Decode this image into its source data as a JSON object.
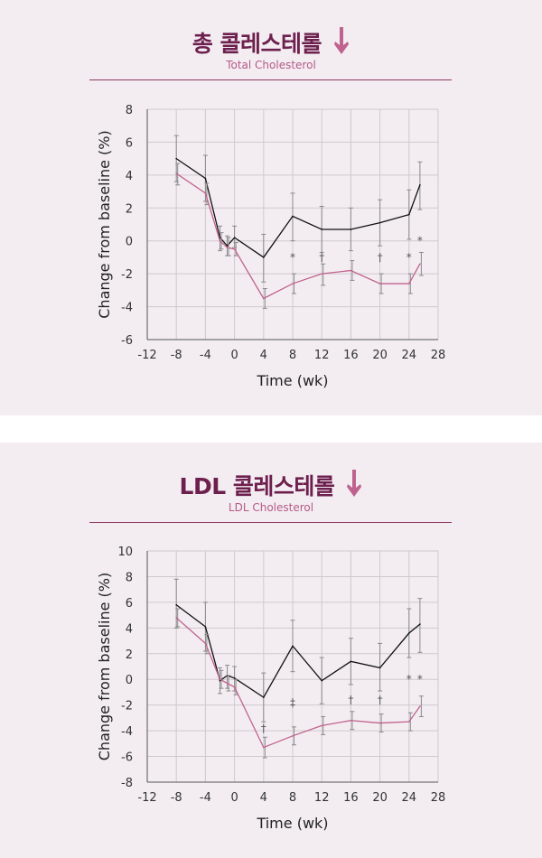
{
  "colors": {
    "treatment": "#c0628e",
    "control": "#111111",
    "title": "#6d1f4e",
    "subtitle": "#b55a8a",
    "errorbar": "#8a8a8a",
    "grid": "#cfc8cc"
  },
  "chart_data": [
    {
      "type": "line",
      "title": "총 콜레스테롤",
      "subtitle": "Total Cholesterol",
      "xlabel": "Time (wk)",
      "ylabel": "Change from baseline (%)",
      "xlim": [
        -12,
        28
      ],
      "ylim": [
        -6,
        8
      ],
      "xticks": [
        -12,
        -8,
        -4,
        0,
        4,
        8,
        12,
        16,
        20,
        24,
        28
      ],
      "yticks": [
        -6,
        -4,
        -2,
        0,
        2,
        4,
        6,
        8
      ],
      "x_tick_labels": [
        "-12",
        "-8",
        "-4",
        "0",
        "4",
        "8",
        "12",
        "16",
        "20",
        "24",
        "28"
      ],
      "y_tick_labels": [
        "-6",
        "-4",
        "-2",
        "0",
        "2",
        "4",
        "6",
        "8"
      ],
      "grid": true,
      "series": [
        {
          "color": "#111111",
          "x": [
            -8,
            -4,
            -2,
            -1,
            0,
            4,
            8,
            12,
            16,
            20,
            24,
            25.5
          ],
          "y": [
            5.0,
            3.8,
            0.2,
            -0.3,
            0.2,
            -1.0,
            1.5,
            0.7,
            0.7,
            1.1,
            1.6,
            3.4
          ],
          "err_low": [
            3.6,
            2.4,
            -0.6,
            -0.9,
            -0.4,
            -2.5,
            0.0,
            -0.7,
            -0.6,
            -0.3,
            0.1,
            1.9
          ],
          "err_high": [
            6.4,
            5.2,
            0.9,
            0.3,
            0.9,
            0.4,
            2.9,
            2.1,
            2.0,
            2.5,
            3.1,
            4.8
          ]
        },
        {
          "color": "#c0628e",
          "x": [
            -8,
            -4,
            -2,
            -1,
            0,
            4,
            8,
            12,
            16,
            20,
            24,
            25.5
          ],
          "y": [
            4.1,
            2.9,
            0.0,
            -0.4,
            -0.5,
            -3.5,
            -2.6,
            -2.0,
            -1.8,
            -2.6,
            -2.6,
            -1.4
          ],
          "err_low": [
            3.4,
            2.2,
            -0.5,
            -0.9,
            -0.9,
            -4.1,
            -3.2,
            -2.7,
            -2.4,
            -3.2,
            -3.2,
            -2.1
          ],
          "err_high": [
            4.7,
            3.5,
            0.5,
            0.2,
            -0.1,
            -2.9,
            -2.0,
            -1.4,
            -1.2,
            -2.0,
            -2.0,
            -0.7
          ]
        }
      ],
      "annotations": [
        {
          "x": 8,
          "y": -1.0,
          "text": "*"
        },
        {
          "x": 12,
          "y": -1.0,
          "text": "†"
        },
        {
          "x": 20,
          "y": -1.0,
          "text": "†"
        },
        {
          "x": 24,
          "y": -1.0,
          "text": "*"
        },
        {
          "x": 25.5,
          "y": 0.0,
          "text": "*"
        }
      ]
    },
    {
      "type": "line",
      "title": "LDL 콜레스테롤",
      "subtitle": "LDL Cholesterol",
      "xlabel": "Time (wk)",
      "ylabel": "Change from baseline (%)",
      "xlim": [
        -12,
        28
      ],
      "ylim": [
        -8,
        10
      ],
      "xticks": [
        -12,
        -8,
        -4,
        0,
        4,
        8,
        12,
        16,
        20,
        24,
        28
      ],
      "yticks": [
        -8,
        -6,
        -4,
        -2,
        0,
        2,
        4,
        6,
        8,
        10
      ],
      "x_tick_labels": [
        "-12",
        "-8",
        "-4",
        "0",
        "4",
        "8",
        "12",
        "16",
        "20",
        "24",
        "28"
      ],
      "y_tick_labels": [
        "-8",
        "-6",
        "-4",
        "-2",
        "0",
        "2",
        "4",
        "6",
        "8",
        "10"
      ],
      "grid": true,
      "series": [
        {
          "color": "#111111",
          "x": [
            -8,
            -4,
            -2,
            -1,
            0,
            4,
            8,
            12,
            16,
            20,
            24,
            25.5
          ],
          "y": [
            5.8,
            4.1,
            -0.1,
            0.3,
            0.1,
            -1.4,
            2.6,
            -0.1,
            1.4,
            0.9,
            3.6,
            4.3
          ],
          "err_low": [
            4.0,
            2.2,
            -1.1,
            -0.7,
            -0.9,
            -3.3,
            0.6,
            -1.9,
            -0.4,
            -0.9,
            1.7,
            2.1
          ],
          "err_high": [
            7.8,
            6.0,
            0.9,
            1.1,
            1.0,
            0.5,
            4.6,
            1.7,
            3.2,
            2.8,
            5.5,
            6.3
          ]
        },
        {
          "color": "#c0628e",
          "x": [
            -8,
            -4,
            -2,
            -1,
            0,
            4,
            8,
            12,
            16,
            20,
            24,
            25.5
          ],
          "y": [
            4.8,
            2.8,
            0.0,
            -0.3,
            -0.6,
            -5.3,
            -4.4,
            -3.6,
            -3.2,
            -3.4,
            -3.3,
            -2.1
          ],
          "err_low": [
            4.1,
            2.0,
            -0.7,
            -0.9,
            -1.2,
            -6.1,
            -5.1,
            -4.3,
            -3.9,
            -4.1,
            -4.0,
            -2.9
          ],
          "err_high": [
            5.5,
            3.5,
            0.7,
            0.3,
            0.0,
            -4.5,
            -3.7,
            -2.9,
            -2.5,
            -2.7,
            -2.6,
            -1.3
          ]
        }
      ],
      "annotations": [
        {
          "x": 4,
          "y": -3.8,
          "text": "†"
        },
        {
          "x": 8,
          "y": -1.8,
          "text": "‡"
        },
        {
          "x": 16,
          "y": -1.6,
          "text": "†"
        },
        {
          "x": 20,
          "y": -1.6,
          "text": "†"
        },
        {
          "x": 24,
          "y": 0.0,
          "text": "*"
        },
        {
          "x": 25.5,
          "y": 0.0,
          "text": "*"
        }
      ]
    }
  ]
}
